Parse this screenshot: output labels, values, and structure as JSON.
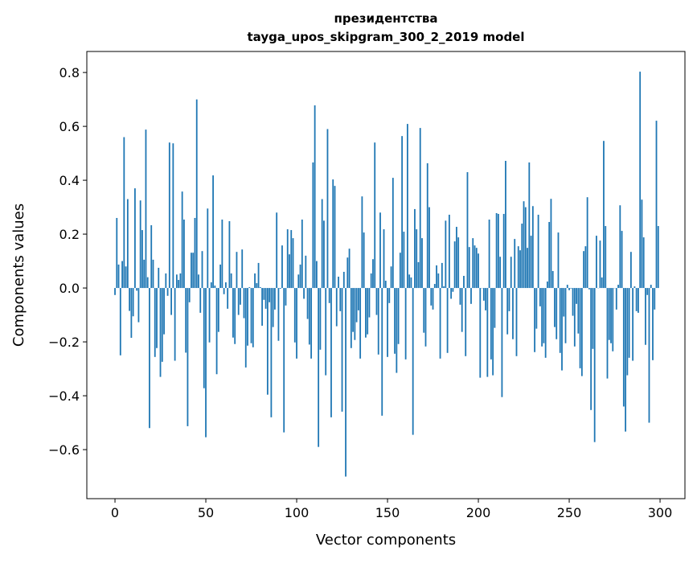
{
  "chart_data": {
    "type": "bar",
    "title_line1": "президентства",
    "title_line2": "tayga_upos_skipgram_300_2_2019 model",
    "xlabel": "Vector components",
    "ylabel": "Components values",
    "xlim": [
      -15.5,
      313.7
    ],
    "ylim": [
      -0.782,
      0.878
    ],
    "xticks": [
      0,
      50,
      100,
      150,
      200,
      250,
      300
    ],
    "xtick_labels": [
      "0",
      "50",
      "100",
      "150",
      "200",
      "250",
      "300"
    ],
    "yticks": [
      -0.6,
      -0.4,
      -0.2,
      0.0,
      0.2,
      0.4,
      0.6,
      0.8
    ],
    "ytick_labels": [
      "−0.6",
      "−0.4",
      "−0.2",
      "0.0",
      "0.2",
      "0.4",
      "0.6",
      "0.8"
    ],
    "bar_color": "#1f77b4",
    "grid": false,
    "values": [
      -0.026,
      0.26,
      0.087,
      -0.25,
      0.1,
      0.56,
      0.08,
      0.33,
      -0.085,
      -0.185,
      -0.105,
      0.37,
      -0.01,
      -0.127,
      0.325,
      0.215,
      0.105,
      0.588,
      0.04,
      -0.52,
      0.233,
      0.105,
      -0.256,
      -0.223,
      0.075,
      -0.33,
      -0.274,
      -0.172,
      0.054,
      -0.029,
      0.54,
      -0.1,
      0.537,
      -0.27,
      0.05,
      0.03,
      0.054,
      0.358,
      0.254,
      -0.24,
      -0.513,
      -0.053,
      0.131,
      0.131,
      0.26,
      0.7,
      0.05,
      -0.092,
      0.137,
      -0.372,
      -0.554,
      0.295,
      -0.202,
      0.021,
      0.418,
      0.009,
      -0.32,
      -0.163,
      0.087,
      0.254,
      -0.023,
      0.021,
      -0.077,
      0.248,
      0.054,
      -0.184,
      -0.208,
      0.134,
      -0.1,
      -0.062,
      0.143,
      -0.112,
      -0.295,
      -0.214,
      0.003,
      -0.205,
      -0.22,
      0.054,
      0.018,
      0.093,
      0.003,
      -0.14,
      -0.044,
      -0.077,
      -0.396,
      -0.053,
      -0.48,
      -0.145,
      -0.08,
      0.28,
      -0.196,
      -0.003,
      0.158,
      -0.536,
      -0.065,
      0.218,
      0.125,
      0.215,
      0.185,
      -0.202,
      -0.262,
      0.05,
      0.087,
      0.254,
      -0.04,
      0.12,
      -0.115,
      -0.21,
      -0.262,
      0.466,
      0.678,
      0.1,
      -0.59,
      -0.229,
      0.33,
      0.25,
      -0.324,
      0.59,
      -0.056,
      -0.48,
      0.403,
      0.379,
      -0.142,
      0.042,
      -0.086,
      -0.459,
      0.06,
      -0.7,
      0.113,
      0.146,
      -0.223,
      -0.163,
      -0.193,
      -0.127,
      -0.083,
      -0.262,
      0.34,
      0.206,
      -0.184,
      -0.172,
      -0.109,
      0.054,
      0.107,
      0.54,
      -0.1,
      -0.247,
      0.28,
      -0.474,
      0.218,
      0.027,
      -0.256,
      -0.056,
      0.08,
      0.409,
      -0.244,
      -0.315,
      -0.208,
      0.131,
      0.564,
      0.209,
      -0.265,
      0.609,
      0.05,
      0.039,
      -0.545,
      0.293,
      0.218,
      0.096,
      0.594,
      0.185,
      -0.166,
      -0.217,
      0.463,
      0.3,
      -0.065,
      -0.08,
      0.015,
      0.084,
      0.054,
      -0.262,
      0.093,
      0.006,
      0.25,
      -0.241,
      0.272,
      -0.04,
      -0.014,
      0.173,
      0.227,
      0.188,
      -0.062,
      -0.163,
      0.045,
      -0.253,
      0.43,
      0.152,
      -0.059,
      0.185,
      0.158,
      0.149,
      0.128,
      -0.333,
      0.0,
      -0.047,
      -0.083,
      -0.33,
      0.254,
      -0.265,
      -0.324,
      -0.148,
      0.278,
      0.275,
      0.116,
      -0.405,
      0.275,
      0.472,
      -0.172,
      -0.086,
      0.116,
      -0.19,
      0.182,
      -0.253,
      0.155,
      0.14,
      0.239,
      0.322,
      0.3,
      0.149,
      0.466,
      0.194,
      0.304,
      -0.238,
      -0.151,
      0.272,
      -0.068,
      -0.217,
      -0.205,
      -0.259,
      0.024,
      0.245,
      0.331,
      0.063,
      -0.145,
      -0.19,
      0.206,
      -0.241,
      -0.306,
      -0.106,
      -0.205,
      0.012,
      -0.008,
      -0.002,
      -0.103,
      -0.217,
      -0.059,
      -0.169,
      -0.298,
      -0.327,
      0.137,
      0.155,
      0.337,
      -0.005,
      -0.453,
      -0.226,
      -0.572,
      0.194,
      0.0,
      0.176,
      0.039,
      0.546,
      0.23,
      -0.336,
      -0.193,
      -0.205,
      -0.235,
      0.0,
      -0.08,
      0.012,
      0.307,
      0.212,
      -0.44,
      -0.533,
      -0.324,
      -0.259,
      0.134,
      -0.27,
      0.006,
      -0.086,
      -0.092,
      0.803,
      0.328,
      0.188,
      -0.211,
      -0.026,
      -0.5,
      0.012,
      -0.268,
      -0.08,
      0.621,
      0.23
    ]
  }
}
